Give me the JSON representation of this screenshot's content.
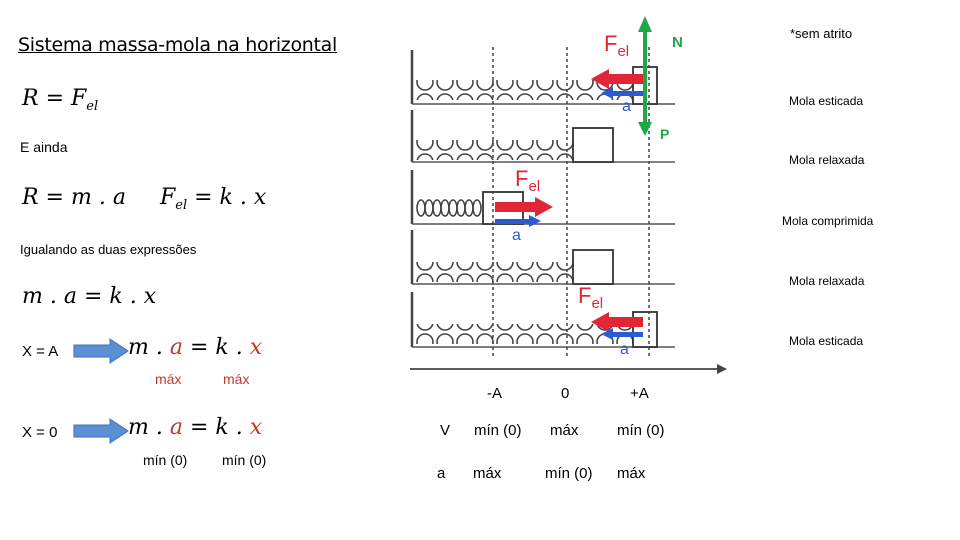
{
  "slide": {
    "title": "Sistema massa-mola na horizontal",
    "eq1": {
      "lhs": "R",
      "rhs_main": "F",
      "rhs_sub": "el"
    },
    "e_ainda": "E ainda",
    "eq2a": "R = m . a",
    "eq2b": {
      "main": "F",
      "sub": "el",
      "rest": " = k . x"
    },
    "igualando": "Igualando as duas expressões",
    "eq3": "m . a = k . x",
    "case_a": {
      "label": "X = A",
      "eq_m": "m .",
      "eq_a": "a",
      "eq_mid": " = k .",
      "eq_x": "x",
      "under_a": "máx",
      "under_x": "máx"
    },
    "case_0": {
      "label": "X = 0",
      "eq_m": "m .",
      "eq_a": "a",
      "eq_mid": " = k .",
      "eq_x": "x",
      "under_a": "mín (0)",
      "under_x": "mín (0)"
    },
    "colors": {
      "red": "#c0392b",
      "arrow_blue": "#5b8fd6",
      "green": "#1fa84a",
      "force_red": "#e32636",
      "accel_blue": "#2b5bd3"
    }
  },
  "diagram": {
    "sem_atrito": "*sem atrito",
    "N": "N",
    "P": "P",
    "fel_main": "F",
    "fel_sub": "el",
    "a": "a",
    "states": [
      "Mola esticada",
      "Mola relaxada",
      "Mola comprimida",
      "Mola relaxada",
      "Mola esticada"
    ],
    "axis_ticks": [
      "-A",
      "0",
      "+A"
    ]
  },
  "table": {
    "rows": [
      {
        "label": "V",
        "cells": [
          "mín (0)",
          "máx",
          "mín (0)"
        ]
      },
      {
        "label": "a",
        "cells": [
          "máx",
          "mín (0)",
          "máx"
        ]
      }
    ]
  }
}
